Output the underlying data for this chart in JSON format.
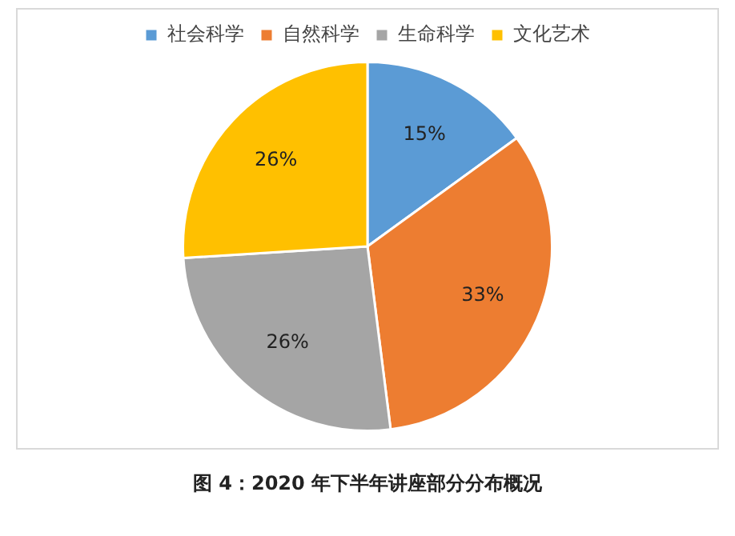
{
  "chart_data": {
    "type": "pie",
    "categories": [
      "社会科学",
      "自然科学",
      "生命科学",
      "文化艺术"
    ],
    "values": [
      15,
      33,
      26,
      26
    ],
    "colors": [
      "#5b9bd5",
      "#ed7d31",
      "#a5a5a5",
      "#ffc000"
    ],
    "value_labels": [
      "15%",
      "33%",
      "26%",
      "26%"
    ],
    "legend": "top",
    "annotations": [
      "图 4：2020 年下半年讲座部分分布概况"
    ]
  }
}
